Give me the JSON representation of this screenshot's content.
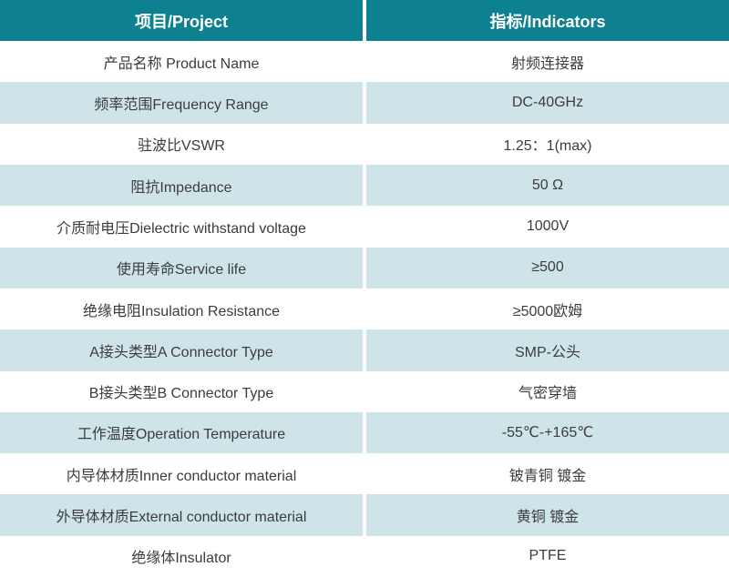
{
  "table": {
    "colors": {
      "header_bg": "#0d8190",
      "header_text": "#ffffff",
      "row_bg": "#ffffff",
      "row_alt_bg": "#cfe4e8",
      "body_text": "#3c3c3c",
      "divider": "#ffffff"
    },
    "header": {
      "project": "项目/Project",
      "indicators": "指标/Indicators"
    },
    "rows": [
      {
        "project": "产品名称 Product Name",
        "indicator": "射频连接器"
      },
      {
        "project": "频率范围Frequency Range",
        "indicator": "DC-40GHz"
      },
      {
        "project": "驻波比VSWR",
        "indicator": "1.25：1(max)"
      },
      {
        "project": "阻抗Impedance",
        "indicator": "50 Ω"
      },
      {
        "project": "介质耐电压Dielectric withstand voltage",
        "indicator": "1000V"
      },
      {
        "project": "使用寿命Service life",
        "indicator": "≥500"
      },
      {
        "project": "绝缘电阻Insulation Resistance",
        "indicator": "≥5000欧姆"
      },
      {
        "project": "A接头类型A Connector Type",
        "indicator": "SMP-公头"
      },
      {
        "project": "B接头类型B Connector Type",
        "indicator": "气密穿墙"
      },
      {
        "project": "工作温度Operation Temperature",
        "indicator": "-55℃-+165℃"
      },
      {
        "project": "内导体材质Inner conductor material",
        "indicator": "铍青铜 镀金"
      },
      {
        "project": "外导体材质External conductor material",
        "indicator": "黄铜 镀金"
      },
      {
        "project": "绝缘体Insulator",
        "indicator": "PTFE"
      }
    ]
  }
}
